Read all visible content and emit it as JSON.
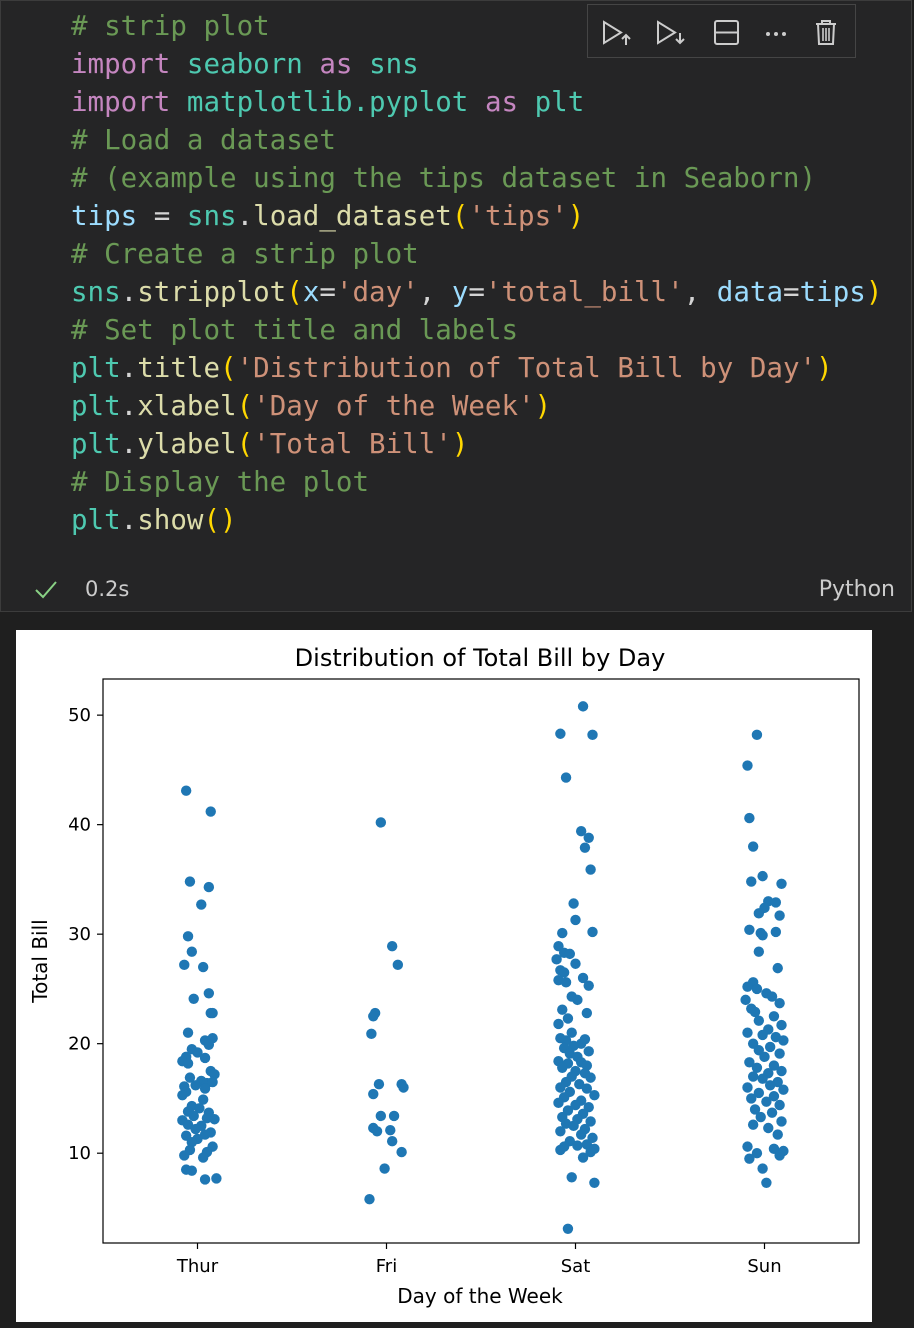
{
  "cell": {
    "code_lines": [
      [
        {
          "t": "# strip plot",
          "c": "comment"
        }
      ],
      [
        {
          "t": "import",
          "c": "keyword"
        },
        {
          "t": " ",
          "c": "plain"
        },
        {
          "t": "seaborn",
          "c": "module"
        },
        {
          "t": " ",
          "c": "plain"
        },
        {
          "t": "as",
          "c": "keyword"
        },
        {
          "t": " ",
          "c": "plain"
        },
        {
          "t": "sns",
          "c": "module"
        }
      ],
      [
        {
          "t": "import",
          "c": "keyword"
        },
        {
          "t": " ",
          "c": "plain"
        },
        {
          "t": "matplotlib.pyplot",
          "c": "module"
        },
        {
          "t": " ",
          "c": "plain"
        },
        {
          "t": "as",
          "c": "keyword"
        },
        {
          "t": " ",
          "c": "plain"
        },
        {
          "t": "plt",
          "c": "module"
        }
      ],
      [
        {
          "t": "# Load a dataset",
          "c": "comment"
        }
      ],
      [
        {
          "t": "# (example using the tips dataset in Seaborn)",
          "c": "comment"
        }
      ],
      [
        {
          "t": "tips",
          "c": "var"
        },
        {
          "t": " = ",
          "c": "plain"
        },
        {
          "t": "sns",
          "c": "module"
        },
        {
          "t": ".",
          "c": "plain"
        },
        {
          "t": "load_dataset",
          "c": "func"
        },
        {
          "t": "(",
          "c": "paren"
        },
        {
          "t": "'tips'",
          "c": "string"
        },
        {
          "t": ")",
          "c": "paren"
        }
      ],
      [
        {
          "t": "# Create a strip plot",
          "c": "comment"
        }
      ],
      [
        {
          "t": "sns",
          "c": "module"
        },
        {
          "t": ".",
          "c": "plain"
        },
        {
          "t": "stripplot",
          "c": "func"
        },
        {
          "t": "(",
          "c": "paren"
        },
        {
          "t": "x",
          "c": "var"
        },
        {
          "t": "=",
          "c": "plain"
        },
        {
          "t": "'day'",
          "c": "string"
        },
        {
          "t": ", ",
          "c": "plain"
        },
        {
          "t": "y",
          "c": "var"
        },
        {
          "t": "=",
          "c": "plain"
        },
        {
          "t": "'total_bill'",
          "c": "string"
        },
        {
          "t": ", ",
          "c": "plain"
        },
        {
          "t": "data",
          "c": "var"
        },
        {
          "t": "=",
          "c": "plain"
        },
        {
          "t": "tips",
          "c": "var"
        },
        {
          "t": ")",
          "c": "paren"
        }
      ],
      [
        {
          "t": "# Set plot title and labels",
          "c": "comment"
        }
      ],
      [
        {
          "t": "plt",
          "c": "module"
        },
        {
          "t": ".",
          "c": "plain"
        },
        {
          "t": "title",
          "c": "func"
        },
        {
          "t": "(",
          "c": "paren"
        },
        {
          "t": "'Distribution of Total Bill by Day'",
          "c": "string"
        },
        {
          "t": ")",
          "c": "paren"
        }
      ],
      [
        {
          "t": "plt",
          "c": "module"
        },
        {
          "t": ".",
          "c": "plain"
        },
        {
          "t": "xlabel",
          "c": "func"
        },
        {
          "t": "(",
          "c": "paren"
        },
        {
          "t": "'Day of the Week'",
          "c": "string"
        },
        {
          "t": ")",
          "c": "paren"
        }
      ],
      [
        {
          "t": "plt",
          "c": "module"
        },
        {
          "t": ".",
          "c": "plain"
        },
        {
          "t": "ylabel",
          "c": "func"
        },
        {
          "t": "(",
          "c": "paren"
        },
        {
          "t": "'Total Bill'",
          "c": "string"
        },
        {
          "t": ")",
          "c": "paren"
        }
      ],
      [
        {
          "t": "# Display the plot",
          "c": "comment"
        }
      ],
      [
        {
          "t": "plt",
          "c": "module"
        },
        {
          "t": ".",
          "c": "plain"
        },
        {
          "t": "show",
          "c": "func"
        },
        {
          "t": "()",
          "c": "paren"
        }
      ]
    ],
    "toolbar": [
      {
        "name": "execute-above-button",
        "icon": "run-above-icon"
      },
      {
        "name": "execute-below-button",
        "icon": "run-below-icon"
      },
      {
        "name": "split-cell-button",
        "icon": "split-cell-icon"
      },
      {
        "name": "more-actions-button",
        "icon": "ellipsis-icon"
      },
      {
        "name": "delete-cell-button",
        "icon": "trash-icon"
      }
    ],
    "status": {
      "icon": "check-icon",
      "exec_time": "0.2s",
      "language": "Python"
    }
  },
  "colors": {
    "cell_background": "#252526",
    "editor_background": "#1f1f1f",
    "success_check": "#89d185",
    "point": "#1f77b4"
  },
  "chart_data": {
    "type": "scatter",
    "title": "Distribution of Total Bill by Day",
    "xlabel": "Day of the Week",
    "ylabel": "Total Bill",
    "categories": [
      "Thur",
      "Fri",
      "Sat",
      "Sun"
    ],
    "ylim": [
      1.8,
      53.3
    ],
    "yticks": [
      10,
      20,
      30,
      40,
      50
    ],
    "grid": false,
    "legend": "none",
    "points": {
      "Thur": [
        [
          -0.06,
          43.1
        ],
        [
          0.07,
          41.2
        ],
        [
          -0.04,
          34.8
        ],
        [
          0.06,
          34.3
        ],
        [
          0.02,
          32.7
        ],
        [
          -0.05,
          29.8
        ],
        [
          -0.03,
          28.4
        ],
        [
          -0.07,
          27.2
        ],
        [
          0.03,
          27.0
        ],
        [
          0.06,
          24.6
        ],
        [
          -0.02,
          24.1
        ],
        [
          0.07,
          22.8
        ],
        [
          0.08,
          22.8
        ],
        [
          -0.05,
          21.0
        ],
        [
          0.04,
          20.3
        ],
        [
          0.08,
          20.5
        ],
        [
          0.06,
          19.9
        ],
        [
          -0.03,
          19.5
        ],
        [
          0.0,
          19.2
        ],
        [
          -0.06,
          18.8
        ],
        [
          0.04,
          18.7
        ],
        [
          -0.08,
          18.4
        ],
        [
          -0.05,
          18.2
        ],
        [
          0.07,
          17.5
        ],
        [
          0.09,
          17.2
        ],
        [
          -0.04,
          16.9
        ],
        [
          0.02,
          16.6
        ],
        [
          0.05,
          16.4
        ],
        [
          0.08,
          16.5
        ],
        [
          -0.07,
          16.1
        ],
        [
          -0.01,
          16.2
        ],
        [
          0.04,
          15.9
        ],
        [
          -0.06,
          15.6
        ],
        [
          -0.08,
          15.3
        ],
        [
          0.03,
          14.9
        ],
        [
          -0.03,
          14.3
        ],
        [
          0.01,
          14.1
        ],
        [
          -0.05,
          13.8
        ],
        [
          0.06,
          13.7
        ],
        [
          -0.02,
          13.4
        ],
        [
          0.05,
          13.2
        ],
        [
          0.09,
          13.1
        ],
        [
          -0.08,
          13.0
        ],
        [
          -0.05,
          12.6
        ],
        [
          0.02,
          12.5
        ],
        [
          -0.01,
          12.2
        ],
        [
          0.07,
          11.9
        ],
        [
          0.04,
          11.7
        ],
        [
          -0.06,
          11.6
        ],
        [
          0.0,
          11.3
        ],
        [
          -0.03,
          11.0
        ],
        [
          0.08,
          10.6
        ],
        [
          -0.04,
          10.3
        ],
        [
          0.05,
          10.1
        ],
        [
          -0.07,
          9.8
        ],
        [
          0.03,
          9.6
        ],
        [
          -0.06,
          8.5
        ],
        [
          -0.03,
          8.4
        ],
        [
          0.04,
          7.6
        ],
        [
          0.1,
          7.7
        ]
      ],
      "Fri": [
        [
          -0.03,
          40.2
        ],
        [
          0.03,
          28.9
        ],
        [
          0.06,
          27.2
        ],
        [
          -0.06,
          22.8
        ],
        [
          -0.07,
          22.5
        ],
        [
          -0.08,
          20.9
        ],
        [
          0.08,
          16.3
        ],
        [
          0.09,
          16.0
        ],
        [
          -0.04,
          16.3
        ],
        [
          -0.07,
          15.4
        ],
        [
          -0.03,
          13.4
        ],
        [
          0.04,
          13.4
        ],
        [
          -0.07,
          12.3
        ],
        [
          -0.05,
          12.0
        ],
        [
          0.02,
          12.1
        ],
        [
          0.03,
          11.1
        ],
        [
          0.08,
          10.1
        ],
        [
          -0.01,
          8.6
        ],
        [
          -0.09,
          5.8
        ]
      ],
      "Sat": [
        [
          0.04,
          50.8
        ],
        [
          -0.08,
          48.3
        ],
        [
          0.09,
          48.2
        ],
        [
          -0.05,
          44.3
        ],
        [
          0.03,
          39.4
        ],
        [
          0.07,
          38.8
        ],
        [
          0.05,
          37.9
        ],
        [
          0.08,
          35.9
        ],
        [
          -0.01,
          32.8
        ],
        [
          -0.07,
          30.1
        ],
        [
          0.09,
          30.2
        ],
        [
          0.0,
          31.3
        ],
        [
          -0.09,
          28.9
        ],
        [
          -0.06,
          28.3
        ],
        [
          -0.03,
          28.2
        ],
        [
          -0.1,
          27.7
        ],
        [
          0.0,
          27.3
        ],
        [
          -0.08,
          26.7
        ],
        [
          -0.06,
          26.5
        ],
        [
          0.04,
          26.0
        ],
        [
          -0.09,
          25.8
        ],
        [
          -0.05,
          25.6
        ],
        [
          0.07,
          25.3
        ],
        [
          -0.02,
          24.3
        ],
        [
          0.01,
          24.0
        ],
        [
          -0.07,
          23.1
        ],
        [
          0.06,
          22.8
        ],
        [
          -0.04,
          22.3
        ],
        [
          -0.09,
          21.8
        ],
        [
          -0.02,
          21.0
        ],
        [
          -0.08,
          20.5
        ],
        [
          -0.05,
          20.3
        ],
        [
          0.03,
          20.0
        ],
        [
          0.05,
          20.4
        ],
        [
          -0.01,
          19.8
        ],
        [
          -0.06,
          19.6
        ],
        [
          0.07,
          19.3
        ],
        [
          -0.03,
          19.1
        ],
        [
          0.01,
          18.8
        ],
        [
          -0.09,
          18.4
        ],
        [
          -0.04,
          18.2
        ],
        [
          0.03,
          18.3
        ],
        [
          0.06,
          18.0
        ],
        [
          -0.07,
          17.8
        ],
        [
          0.0,
          17.5
        ],
        [
          0.05,
          17.3
        ],
        [
          -0.02,
          17.0
        ],
        [
          0.08,
          16.9
        ],
        [
          -0.05,
          16.5
        ],
        [
          0.02,
          16.3
        ],
        [
          -0.08,
          16.0
        ],
        [
          0.06,
          15.9
        ],
        [
          -0.03,
          15.6
        ],
        [
          0.1,
          15.3
        ],
        [
          -0.06,
          15.1
        ],
        [
          0.03,
          14.8
        ],
        [
          -0.09,
          14.6
        ],
        [
          0.0,
          14.4
        ],
        [
          0.07,
          14.2
        ],
        [
          -0.04,
          13.9
        ],
        [
          0.04,
          13.6
        ],
        [
          -0.07,
          13.3
        ],
        [
          0.01,
          13.1
        ],
        [
          0.08,
          12.9
        ],
        [
          -0.05,
          12.7
        ],
        [
          -0.01,
          12.5
        ],
        [
          0.05,
          12.2
        ],
        [
          -0.08,
          12.0
        ],
        [
          0.03,
          11.7
        ],
        [
          0.09,
          11.4
        ],
        [
          -0.03,
          11.1
        ],
        [
          0.06,
          10.8
        ],
        [
          -0.06,
          10.6
        ],
        [
          0.01,
          10.7
        ],
        [
          0.1,
          10.4
        ],
        [
          -0.08,
          10.3
        ],
        [
          0.08,
          10.1
        ],
        [
          0.04,
          9.6
        ],
        [
          -0.02,
          7.8
        ],
        [
          0.1,
          7.3
        ],
        [
          -0.04,
          3.1
        ]
      ],
      "Sun": [
        [
          -0.04,
          48.2
        ],
        [
          -0.09,
          45.4
        ],
        [
          -0.08,
          40.6
        ],
        [
          -0.06,
          38.0
        ],
        [
          -0.01,
          35.3
        ],
        [
          -0.07,
          34.8
        ],
        [
          0.09,
          34.6
        ],
        [
          0.02,
          33.0
        ],
        [
          0.06,
          32.9
        ],
        [
          0.0,
          32.4
        ],
        [
          0.08,
          31.7
        ],
        [
          -0.03,
          31.9
        ],
        [
          -0.08,
          30.4
        ],
        [
          -0.02,
          30.1
        ],
        [
          -0.01,
          29.9
        ],
        [
          0.06,
          30.2
        ],
        [
          -0.03,
          28.4
        ],
        [
          0.07,
          26.9
        ],
        [
          -0.06,
          25.6
        ],
        [
          -0.09,
          25.2
        ],
        [
          -0.04,
          25.0
        ],
        [
          0.01,
          24.6
        ],
        [
          0.04,
          24.3
        ],
        [
          -0.1,
          24.0
        ],
        [
          0.08,
          23.7
        ],
        [
          -0.07,
          23.2
        ],
        [
          -0.05,
          22.9
        ],
        [
          0.05,
          22.5
        ],
        [
          -0.03,
          22.1
        ],
        [
          0.09,
          21.7
        ],
        [
          0.02,
          21.3
        ],
        [
          -0.09,
          21.0
        ],
        [
          -0.01,
          20.8
        ],
        [
          0.06,
          20.6
        ],
        [
          0.1,
          20.3
        ],
        [
          -0.06,
          20.0
        ],
        [
          0.03,
          19.7
        ],
        [
          -0.03,
          19.4
        ],
        [
          0.08,
          19.1
        ],
        [
          0.0,
          18.8
        ],
        [
          -0.08,
          18.3
        ],
        [
          0.05,
          18.0
        ],
        [
          -0.04,
          17.8
        ],
        [
          0.09,
          17.5
        ],
        [
          0.02,
          17.3
        ],
        [
          -0.06,
          17.0
        ],
        [
          -0.01,
          16.8
        ],
        [
          0.07,
          16.5
        ],
        [
          0.03,
          16.2
        ],
        [
          -0.09,
          16.0
        ],
        [
          0.1,
          15.8
        ],
        [
          -0.03,
          15.5
        ],
        [
          0.05,
          15.2
        ],
        [
          -0.07,
          15.0
        ],
        [
          0.01,
          14.7
        ],
        [
          0.08,
          14.4
        ],
        [
          -0.05,
          14.0
        ],
        [
          0.04,
          13.7
        ],
        [
          -0.02,
          13.3
        ],
        [
          0.09,
          12.9
        ],
        [
          -0.06,
          12.6
        ],
        [
          0.02,
          12.3
        ],
        [
          0.07,
          11.7
        ],
        [
          -0.09,
          10.6
        ],
        [
          0.05,
          10.4
        ],
        [
          0.1,
          10.2
        ],
        [
          -0.04,
          10.0
        ],
        [
          0.08,
          9.8
        ],
        [
          -0.08,
          9.5
        ],
        [
          -0.01,
          8.6
        ],
        [
          0.01,
          7.3
        ]
      ]
    }
  }
}
